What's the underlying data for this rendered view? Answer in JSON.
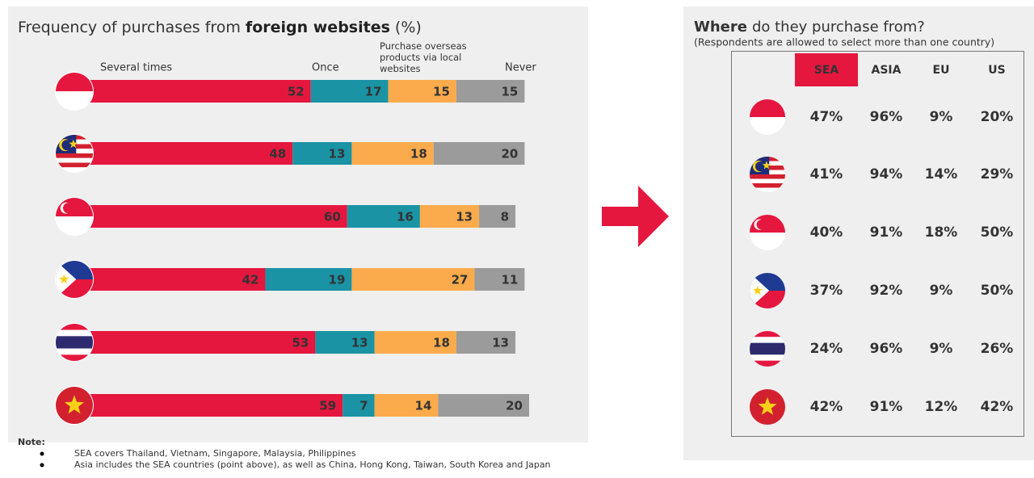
{
  "chart_data": {
    "type": "stacked-bar-horizontal",
    "title_parts": [
      "Frequency of purchases from",
      "foreign websites",
      "(%)"
    ],
    "categories": [
      null,
      null,
      null,
      null,
      null,
      null
    ],
    "xlim": [
      0,
      100
    ],
    "series": [
      {
        "name": "Several times",
        "color": "#e5173f",
        "values": [
          52,
          48,
          60,
          42,
          53,
          59
        ]
      },
      {
        "name": "Once",
        "color": "#1a93a5",
        "values": [
          17,
          13,
          16,
          19,
          13,
          7
        ]
      },
      {
        "name": "Purchase overseas products via local websites",
        "color": "#fbab4b",
        "values": [
          15,
          18,
          13,
          27,
          18,
          14
        ]
      },
      {
        "name": "Never",
        "color": "#9b9b9b",
        "values": [
          15,
          20,
          8,
          11,
          13,
          20
        ]
      }
    ]
  },
  "note": {
    "label": "Note:",
    "items": [
      "SEA covers Thailand, Vietnam, Singapore, Malaysia, Philippines",
      "Asia includes the SEA countries (point above), as well as China, Hong Kong, Taiwan, South Korea and Japan"
    ]
  },
  "table": {
    "title_parts": [
      "Where",
      "do they purchase from?"
    ],
    "subtitle": "(Respondents are allowed to select more than one country)",
    "columns": [
      "SEA",
      "ASIA",
      "EU",
      "US"
    ],
    "rows": [
      [
        "47%",
        "96%",
        "9%",
        "20%"
      ],
      [
        "41%",
        "94%",
        "14%",
        "29%"
      ],
      [
        "40%",
        "91%",
        "18%",
        "50%"
      ],
      [
        "37%",
        "92%",
        "9%",
        "50%"
      ],
      [
        "24%",
        "96%",
        "9%",
        "26%"
      ],
      [
        "42%",
        "91%",
        "12%",
        "42%"
      ]
    ]
  }
}
